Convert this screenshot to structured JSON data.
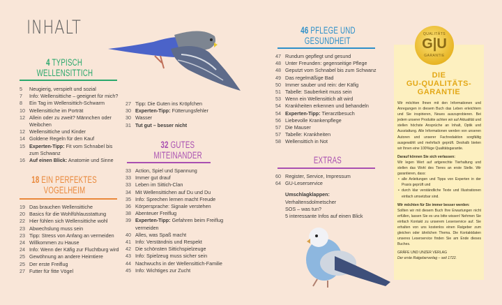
{
  "title": "INHALT",
  "colors": {
    "green": "#2aa86c",
    "orange": "#e9883a",
    "purple": "#a94fb1",
    "blue": "#2c8fc9",
    "gold": "#e3a817",
    "background": "#f9e6d8",
    "box": "#fdf0c0"
  },
  "sections": {
    "s1": {
      "num": "4",
      "title_line1": "TYPISCH",
      "title_line2": "WELLENSITTICH",
      "items": [
        {
          "n": "5",
          "b": "",
          "t": "Neugierig, verspielt und sozial"
        },
        {
          "n": "7",
          "b": "",
          "t": "Info: Wellensittiche – geeignet für mich?"
        },
        {
          "n": "8",
          "b": "",
          "t": "Ein Tag im Wellensittich-Schwarm"
        },
        {
          "n": "10",
          "b": "",
          "t": "Wellensittiche im Porträt"
        },
        {
          "n": "12",
          "b": "",
          "t": "Allein oder zu zweit? Männchen oder Weibchen"
        },
        {
          "n": "12",
          "b": "",
          "t": "Wellensittiche und Kinder"
        },
        {
          "n": "14",
          "b": "",
          "t": "Goldene Regeln für den Kauf"
        },
        {
          "n": "15",
          "b": "Experten-Tipp:",
          "t": " Fit vom Schnabel bis zum Schwanz"
        },
        {
          "n": "16",
          "b": "Auf einen Blick:",
          "t": " Anatomie und Sinne"
        }
      ]
    },
    "s2": {
      "num": "18",
      "title_line1": "EIN PERFEKTES",
      "title_line2": "VOGELHEIM",
      "items": [
        {
          "n": "19",
          "b": "",
          "t": "Das brauchen Wellensittiche"
        },
        {
          "n": "20",
          "b": "",
          "t": "Basics für die Wohlfühlausstattung"
        },
        {
          "n": "22",
          "b": "",
          "t": "Hier fühlen sich Wellensittiche wohl"
        },
        {
          "n": "23",
          "b": "",
          "t": "Abwechslung muss sein"
        },
        {
          "n": "23",
          "b": "",
          "t": "Tipp: Stress von Anfang an vermeiden"
        },
        {
          "n": "24",
          "b": "",
          "t": "Willkommen zu Hause"
        },
        {
          "n": "24",
          "b": "",
          "t": "Info: Wenn der Käfig zur Fluchtburg wird"
        },
        {
          "n": "25",
          "b": "",
          "t": "Gewöhnung an andere Heimtiere"
        },
        {
          "n": "25",
          "b": "",
          "t": "Der erste Freiflug"
        },
        {
          "n": "27",
          "b": "",
          "t": "Futter für fitte Vögel"
        }
      ],
      "continued": [
        {
          "n": "27",
          "b": "",
          "t": "Tipp: Die Guten ins Kröpfchen"
        },
        {
          "n": "30",
          "b": "Experten-Tipp:",
          "t": " Fütterungsfehler"
        },
        {
          "n": "30",
          "b": "",
          "t": "Wasser"
        },
        {
          "n": "31",
          "b": "Tut gut – besser nicht",
          "t": ""
        }
      ]
    },
    "s3": {
      "num": "32",
      "title_line1": "GUTES",
      "title_line2": "MITEINANDER",
      "items": [
        {
          "n": "33",
          "b": "",
          "t": "Action, Spiel und Spannung"
        },
        {
          "n": "33",
          "b": "",
          "t": "Immer gut drauf"
        },
        {
          "n": "33",
          "b": "",
          "t": "Leben im Sittich-Clan"
        },
        {
          "n": "34",
          "b": "",
          "t": "Mit Wellensittichen auf Du und Du"
        },
        {
          "n": "35",
          "b": "",
          "t": "Info: Sprechen lernen macht Freude"
        },
        {
          "n": "36",
          "b": "",
          "t": "Körpersprache: Signale verstehen"
        },
        {
          "n": "38",
          "b": "",
          "t": "Abenteuer Freiflug"
        },
        {
          "n": "39",
          "b": "Experten-Tipp:",
          "t": " Gefahren beim Freiflug vermeiden"
        },
        {
          "n": "40",
          "b": "",
          "t": "Alles, was Spaß macht"
        },
        {
          "n": "41",
          "b": "",
          "t": "Info: Verständnis und Respekt"
        },
        {
          "n": "42",
          "b": "",
          "t": "Die schönsten Sittichspielzeuge"
        },
        {
          "n": "43",
          "b": "",
          "t": "Info: Spielzeug muss sicher sein"
        },
        {
          "n": "44",
          "b": "",
          "t": "Nachwuchs in der Wellensittich-Familie"
        },
        {
          "n": "45",
          "b": "",
          "t": "Info: Wichtiges zur Zucht"
        }
      ]
    },
    "s4": {
      "num": "46",
      "title_line1": "PFLEGE UND",
      "title_line2": "GESUNDHEIT",
      "items": [
        {
          "n": "47",
          "b": "",
          "t": "Rundum gepflegt und gesund"
        },
        {
          "n": "48",
          "b": "",
          "t": "Unter Freunden: gegenseitige Pflege"
        },
        {
          "n": "48",
          "b": "",
          "t": "Geputzt vom Schnabel bis zum Schwanz"
        },
        {
          "n": "49",
          "b": "",
          "t": "Das regelmäßige Bad"
        },
        {
          "n": "50",
          "b": "",
          "t": "Immer sauber und rein: der Käfig"
        },
        {
          "n": "51",
          "b": "",
          "t": "Tabelle: Sauberkeit muss sein"
        },
        {
          "n": "53",
          "b": "",
          "t": "Wenn ein Wellensittich alt wird"
        },
        {
          "n": "54",
          "b": "",
          "t": "Krankheiten erkennen und behandeln"
        },
        {
          "n": "54",
          "b": "Experten-Tipp:",
          "t": " Tierarztbesuch"
        },
        {
          "n": "56",
          "b": "",
          "t": "Liebevolle Krankenpflege"
        },
        {
          "n": "57",
          "b": "",
          "t": "Die Mauser"
        },
        {
          "n": "57",
          "b": "",
          "t": "Tabelle: Krankheiten"
        },
        {
          "n": "58",
          "b": "",
          "t": "Wellensittich in Not"
        }
      ]
    },
    "s5": {
      "num": "",
      "title_line1": "EXTRAS",
      "title_line2": "",
      "items": [
        {
          "n": "60",
          "b": "",
          "t": "Register, Service, Impressum"
        },
        {
          "n": "64",
          "b": "",
          "t": "GU-Leserservice"
        }
      ],
      "flaps_heading": "Umschlagklappen:",
      "flaps": [
        "Verhaltensdolmetscher",
        "SOS – was tun?",
        "5 interessante Infos auf einen Blick"
      ]
    }
  },
  "guarantee": {
    "badge_top": "QUALITÄTS",
    "badge_logo": "G|U",
    "badge_bottom": "GARANTIE",
    "heading_line1": "DIE",
    "heading_line2": "GU-QUALITÄTS-",
    "heading_line3": "GARANTIE",
    "intro": "Wir möchten Ihnen mit den Informationen und Anregungen in diesem Buch das Leben erleichtern und Sie inspirieren, Neues auszuprobieren. Bei jedem unserer Produkte achten wir auf Aktualität und stellen höchste Ansprüche an Inhalt, Optik und Ausstattung. Alle Informationen werden von unseren Autoren und unserer Fachredaktion sorgfältig ausgewählt und mehrfach geprüft. Deshalb bieten wir Ihnen eine 100%ige Qualitätsgarantie.",
    "trust_heading": "Darauf können Sie sich verlassen:",
    "trust_text": "Wir legen Wert auf artgerechte Tierhaltung und stellen das Wohl des Tieres an erste Stelle. Wir garantieren, dass:",
    "bullets": [
      "alle Anleitungen und Tipps von Experten in der Praxis geprüft und",
      "durch klar verständliche Texte und Illustrationen einfach umsetzbar sind."
    ],
    "better_heading": "Wir möchten für Sie immer besser werden:",
    "better_text": "Sollten wir mit diesem Buch Ihre Erwartungen nicht erfüllen, lassen Sie es uns bitte wissen! Nehmen Sie einfach Kontakt zu unserem Leserservice auf. Sie erhalten von uns kostenlos einen Ratgeber zum gleichen oder ähnlichen Thema. Die Kontaktdaten unseres Leserservice finden Sie am Ende dieses Buches.",
    "publisher": "GRÄFE UND UNZER VERLAG",
    "tagline": "Der erste Ratgeberverlag – seit 1722."
  }
}
